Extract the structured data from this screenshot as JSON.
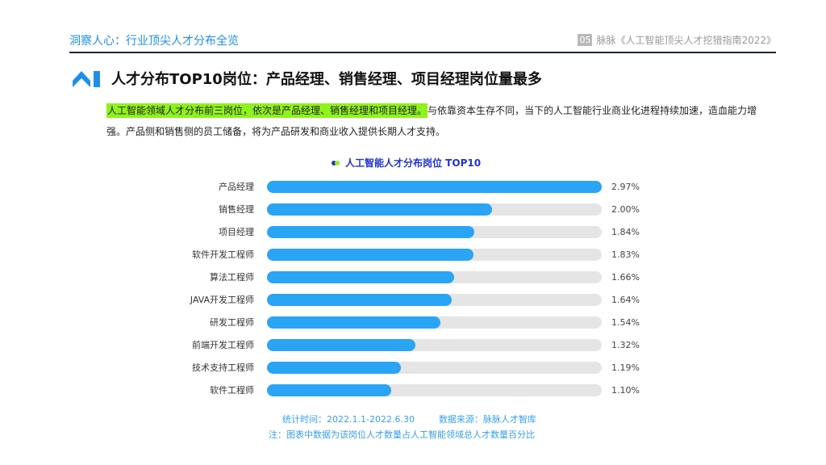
{
  "header": {
    "section": "洞察人心：行业顶尖人才分布全览",
    "page": "05",
    "report": "脉脉《人工智能顶尖人才挖猎指南2022》"
  },
  "title": "人才分布TOP10岗位：产品经理、销售经理、项目经理岗位量最多",
  "paragraph": {
    "highlight": "人工智能领域人才分布前三岗位，依次是产品经理、销售经理和项目经理。",
    "rest": "与依靠资本生存不同，当下的人工智能行业商业化进程持续加速，造血能力增强。产品侧和销售侧的员工储备，将为产品研发和商业收入提供长期人才支持。"
  },
  "colors": {
    "bar": "#2aa4f4",
    "track": "#e5e5e5",
    "highlight": "#8ef21c",
    "accent": "#1e8fe8"
  },
  "chart_data": {
    "type": "bar",
    "orientation": "horizontal",
    "title": "人工智能人才分布岗位 TOP10",
    "categories": [
      "产品经理",
      "销售经理",
      "项目经理",
      "软件开发工程师",
      "算法工程师",
      "JAVA开发工程师",
      "研发工程师",
      "前端开发工程师",
      "技术支持工程师",
      "软件工程师"
    ],
    "values": [
      2.97,
      2.0,
      1.84,
      1.83,
      1.66,
      1.64,
      1.54,
      1.32,
      1.19,
      1.1
    ],
    "labels": [
      "2.97%",
      "2.00%",
      "1.84%",
      "1.83%",
      "1.66%",
      "1.64%",
      "1.54%",
      "1.32%",
      "1.19%",
      "1.10%"
    ],
    "xlim": [
      0,
      2.97
    ],
    "unit": "%",
    "grid": false
  },
  "footer": {
    "period": "统计时间：2022.1.1-2022.6.30",
    "source": "数据来源：脉脉人才智库",
    "note": "注：图表中数据为该岗位人才数量占人工智能领域总人才数量百分比"
  }
}
